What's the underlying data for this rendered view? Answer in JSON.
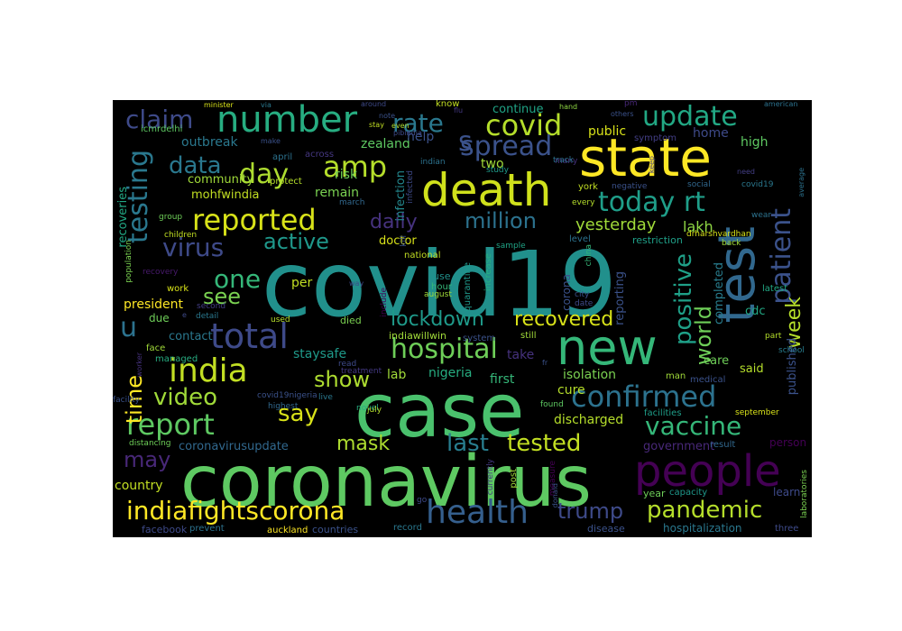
{
  "words": [
    {
      "text": "covid19",
      "color": "#21908c"
    },
    {
      "text": "coronavirus",
      "color": "#5ec962"
    },
    {
      "text": "case",
      "color": "#4ac16d"
    },
    {
      "text": "new",
      "color": "#35b779"
    },
    {
      "text": "state",
      "color": "#fde725"
    },
    {
      "text": "test",
      "color": "#31688e"
    },
    {
      "text": "death",
      "color": "#d0e11c"
    },
    {
      "text": "people",
      "color": "#440154"
    },
    {
      "text": "number",
      "color": "#27ad81"
    },
    {
      "text": "india",
      "color": "#c2df23"
    },
    {
      "text": "total",
      "color": "#3e4a89"
    },
    {
      "text": "health",
      "color": "#355f8d"
    },
    {
      "text": "indiafightscorona",
      "color": "#fde725"
    },
    {
      "text": "confirmed",
      "color": "#2c728e"
    },
    {
      "text": "reported",
      "color": "#d8e219"
    },
    {
      "text": "hospital",
      "color": "#6ece58"
    },
    {
      "text": "report",
      "color": "#5ec962"
    },
    {
      "text": "amp",
      "color": "#b5de2b"
    },
    {
      "text": "covid",
      "color": "#b5de2b"
    },
    {
      "text": "spread",
      "color": "#3b528b"
    },
    {
      "text": "update",
      "color": "#22a884"
    },
    {
      "text": "day",
      "color": "#addc30"
    },
    {
      "text": "today rt",
      "color": "#1f9e89"
    },
    {
      "text": "patient",
      "color": "#3b528b"
    },
    {
      "text": "testing",
      "color": "#2a788e"
    },
    {
      "text": "lockdown",
      "color": "#1f9a8a"
    },
    {
      "text": "recovered",
      "color": "#d8e219"
    },
    {
      "text": "positive",
      "color": "#1fa088"
    },
    {
      "text": "world",
      "color": "#6ece58"
    },
    {
      "text": "vaccine",
      "color": "#35b779"
    },
    {
      "text": "pandemic",
      "color": "#b5de2b"
    },
    {
      "text": "trump",
      "color": "#3e4a89"
    },
    {
      "text": "tested",
      "color": "#c2df23"
    },
    {
      "text": "last",
      "color": "#287d8e"
    },
    {
      "text": "mask",
      "color": "#addc30"
    },
    {
      "text": "say",
      "color": "#d8e219"
    },
    {
      "text": "show",
      "color": "#addc30"
    },
    {
      "text": "video",
      "color": "#a0da39"
    },
    {
      "text": "time",
      "color": "#fde725"
    },
    {
      "text": "virus",
      "color": "#3e4a89"
    },
    {
      "text": "one",
      "color": "#35b779"
    },
    {
      "text": "see",
      "color": "#7ad151"
    },
    {
      "text": "active",
      "color": "#1f988b"
    },
    {
      "text": "claim",
      "color": "#3e4a89"
    },
    {
      "text": "rate",
      "color": "#2a788e"
    },
    {
      "text": "data",
      "color": "#2a788e"
    },
    {
      "text": "daily",
      "color": "#46327e"
    },
    {
      "text": "million",
      "color": "#2c728e"
    },
    {
      "text": "week",
      "color": "#b5de2b"
    },
    {
      "text": "yesterday",
      "color": "#a0da39"
    },
    {
      "text": "lakh",
      "color": "#8fd744"
    },
    {
      "text": "may",
      "color": "#482878"
    },
    {
      "text": "u",
      "color": "#2c728e"
    },
    {
      "text": "outbreak",
      "color": "#2a788e"
    },
    {
      "text": "zealand",
      "color": "#5ec962"
    },
    {
      "text": "risk",
      "color": "#6ece58"
    },
    {
      "text": "help",
      "color": "#3b528b"
    },
    {
      "text": "public",
      "color": "#d8e219"
    },
    {
      "text": "home",
      "color": "#3e4a89"
    },
    {
      "text": "high",
      "color": "#5ec962"
    },
    {
      "text": "remain",
      "color": "#7ad151"
    },
    {
      "text": "community",
      "color": "#a0da39"
    },
    {
      "text": "mohfwindia",
      "color": "#c2df23"
    },
    {
      "text": "recoveries",
      "color": "#22a884"
    },
    {
      "text": "two",
      "color": "#a0da39"
    },
    {
      "text": "infection",
      "color": "#23888e"
    },
    {
      "text": "continue",
      "color": "#20a486"
    },
    {
      "text": "cdc",
      "color": "#22a884"
    },
    {
      "text": "care",
      "color": "#6ece58"
    },
    {
      "text": "said",
      "color": "#b5de2b"
    },
    {
      "text": "published",
      "color": "#3b528b"
    },
    {
      "text": "completed",
      "color": "#287d8e"
    },
    {
      "text": "reporting",
      "color": "#3b528b"
    },
    {
      "text": "doctor",
      "color": "#d8e219"
    },
    {
      "text": "contact",
      "color": "#2a788e"
    },
    {
      "text": "president",
      "color": "#fde725"
    },
    {
      "text": "per",
      "color": "#c2df23"
    },
    {
      "text": "staysafe",
      "color": "#1f9a8a"
    },
    {
      "text": "nigeria",
      "color": "#27ad81"
    },
    {
      "text": "first",
      "color": "#35b779"
    },
    {
      "text": "take",
      "color": "#46327e"
    },
    {
      "text": "cure",
      "color": "#b5de2b"
    },
    {
      "text": "isolation",
      "color": "#7ad151"
    },
    {
      "text": "discharged",
      "color": "#b5de2b"
    },
    {
      "text": "lab",
      "color": "#a0da39"
    },
    {
      "text": "country",
      "color": "#c2df23"
    },
    {
      "text": "coronavirusupdate",
      "color": "#31688e"
    },
    {
      "text": "government",
      "color": "#482878"
    },
    {
      "text": "facebook",
      "color": "#3e4a89"
    },
    {
      "text": "prevent",
      "color": "#2c728e"
    },
    {
      "text": "auckland",
      "color": "#fde725"
    },
    {
      "text": "countries",
      "color": "#3b528b"
    },
    {
      "text": "record",
      "color": "#2a788e"
    },
    {
      "text": "disease",
      "color": "#3b528b"
    },
    {
      "text": "hospitalization",
      "color": "#2a788e"
    },
    {
      "text": "three",
      "color": "#3e4a89"
    },
    {
      "text": "capacity",
      "color": "#1f988b"
    },
    {
      "text": "year",
      "color": "#6ece58"
    },
    {
      "text": "learn",
      "color": "#3e4a89"
    },
    {
      "text": "laboratories",
      "color": "#7ad151"
    },
    {
      "text": "person",
      "color": "#440154"
    },
    {
      "text": "result",
      "color": "#31688e"
    },
    {
      "text": "facilities",
      "color": "#1f9e89"
    },
    {
      "text": "september",
      "color": "#d8e219"
    },
    {
      "text": "medical",
      "color": "#3b528b"
    },
    {
      "text": "man",
      "color": "#a0da39"
    },
    {
      "text": "school",
      "color": "#287d8e"
    },
    {
      "text": "latest",
      "color": "#22a884"
    },
    {
      "text": "part",
      "color": "#b5de2b"
    },
    {
      "text": "treatment",
      "color": "#443983"
    },
    {
      "text": "detail",
      "color": "#2a788e"
    },
    {
      "text": "second",
      "color": "#433e85"
    },
    {
      "text": "used",
      "color": "#b5de2b"
    },
    {
      "text": "died",
      "color": "#7ad151"
    },
    {
      "text": "face",
      "color": "#a0da39"
    },
    {
      "text": "managed",
      "color": "#27ad81"
    },
    {
      "text": "due",
      "color": "#6ece58"
    },
    {
      "text": "indiawillwin",
      "color": "#a0da39"
    },
    {
      "text": "system",
      "color": "#3b528b"
    },
    {
      "text": "still",
      "color": "#a0da39"
    },
    {
      "text": "hour",
      "color": "#35b779"
    },
    {
      "text": "use",
      "color": "#21918c"
    },
    {
      "text": "quarantine",
      "color": "#1f988b"
    },
    {
      "text": "increase",
      "color": "#27ad81"
    },
    {
      "text": "august",
      "color": "#a0da39"
    },
    {
      "text": "corona",
      "color": "#3b528b"
    },
    {
      "text": "date",
      "color": "#3e4a89"
    },
    {
      "text": "city",
      "color": "#3b528b"
    },
    {
      "text": "china",
      "color": "#35b779"
    },
    {
      "text": "national",
      "color": "#c2df23"
    },
    {
      "text": "sample",
      "color": "#20a486"
    },
    {
      "text": "restriction",
      "color": "#1fa088"
    },
    {
      "text": "drharshvardhan",
      "color": "#d8e219"
    },
    {
      "text": "back",
      "color": "#a0da39"
    },
    {
      "text": "level",
      "color": "#2c728e"
    },
    {
      "text": "kill",
      "color": "#3b528b"
    },
    {
      "text": "population",
      "color": "#7ad151"
    },
    {
      "text": "recovery",
      "color": "#481a6c"
    },
    {
      "text": "work",
      "color": "#d8e219"
    },
    {
      "text": "children",
      "color": "#c2df23"
    },
    {
      "text": "group",
      "color": "#6ece58"
    },
    {
      "text": "april",
      "color": "#2c728e"
    },
    {
      "text": "march",
      "color": "#31688e"
    },
    {
      "text": "across",
      "color": "#453781"
    },
    {
      "text": "protect",
      "color": "#b5de2b"
    },
    {
      "text": "make",
      "color": "#3b528b"
    },
    {
      "text": "icmrdelhi",
      "color": "#5ec962"
    },
    {
      "text": "minister",
      "color": "#d8e219"
    },
    {
      "text": "via",
      "color": "#2a788e"
    },
    {
      "text": "around",
      "color": "#3e4a89"
    },
    {
      "text": "know",
      "color": "#c2df23"
    },
    {
      "text": "hand",
      "color": "#8fd744"
    },
    {
      "text": "pm",
      "color": "#482878"
    },
    {
      "text": "american",
      "color": "#2c728e"
    },
    {
      "text": "others",
      "color": "#3b528b"
    },
    {
      "text": "flu",
      "color": "#443983"
    },
    {
      "text": "stay",
      "color": "#c2df23"
    },
    {
      "text": "even",
      "color": "#addc30"
    },
    {
      "text": "symptom",
      "color": "#433e85"
    },
    {
      "text": "pibindia",
      "color": "#3e4a89"
    },
    {
      "text": "many",
      "color": "#46327e"
    },
    {
      "text": "track",
      "color": "#2c728e"
    },
    {
      "text": "study",
      "color": "#1f9a8a"
    },
    {
      "text": "indian",
      "color": "#2c728e"
    },
    {
      "text": "york",
      "color": "#c2df23"
    },
    {
      "text": "negative",
      "color": "#3b528b"
    },
    {
      "text": "every",
      "color": "#b5de2b"
    },
    {
      "text": "social",
      "color": "#31688e"
    },
    {
      "text": "covid19",
      "color": "#2a788e"
    },
    {
      "text": "need",
      "color": "#433e85"
    },
    {
      "text": "wear",
      "color": "#2c728e"
    },
    {
      "text": "average",
      "color": "#2c728e"
    },
    {
      "text": "infected",
      "color": "#3e4a89"
    },
    {
      "text": "keep",
      "color": "#433e85"
    },
    {
      "text": "distancing",
      "color": "#6ece58"
    },
    {
      "text": "worker",
      "color": "#46327e"
    },
    {
      "text": "live",
      "color": "#2a788e"
    },
    {
      "text": "highest",
      "color": "#31688e"
    },
    {
      "text": "covid19nigeria",
      "color": "#3b528b"
    },
    {
      "text": "novel",
      "color": "#27ad81"
    },
    {
      "text": "july",
      "color": "#b5de2b"
    },
    {
      "text": "found",
      "color": "#5ec962"
    },
    {
      "text": "currently",
      "color": "#443983"
    },
    {
      "text": "post",
      "color": "#a0da39"
    },
    {
      "text": "measure",
      "color": "#440154"
    },
    {
      "text": "donald",
      "color": "#3b528b"
    },
    {
      "text": "go",
      "color": "#3e4a89"
    },
    {
      "text": "read",
      "color": "#3e4a89"
    },
    {
      "text": "include",
      "color": "#440154"
    },
    {
      "text": "facility",
      "color": "#3b528b"
    },
    {
      "text": "way",
      "color": "#3e4a89"
    },
    {
      "text": "s",
      "color": "#3b528b"
    },
    {
      "text": "e",
      "color": "#3e4a89"
    },
    {
      "text": "note",
      "color": "#3b528b"
    },
    {
      "text": "fr",
      "color": "#3b528b"
    }
  ]
}
